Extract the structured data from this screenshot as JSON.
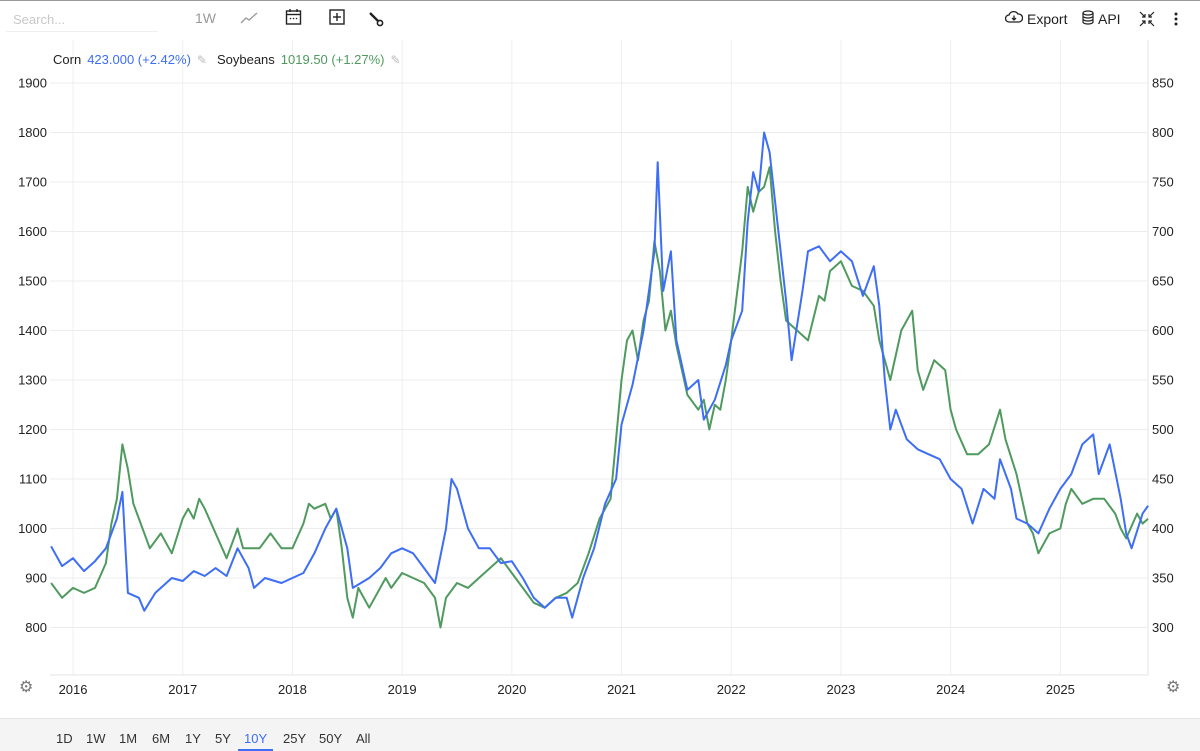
{
  "toolbar": {
    "search_placeholder": "Search...",
    "interval": "1W",
    "export_label": "Export",
    "api_label": "API"
  },
  "legend": {
    "corn": {
      "name": "Corn",
      "value": "423.000 (+2.42%)"
    },
    "soybeans": {
      "name": "Soybeans",
      "value": "1019.50 (+1.27%)"
    }
  },
  "ranges": [
    "1D",
    "1W",
    "1M",
    "6M",
    "1Y",
    "5Y",
    "10Y",
    "25Y",
    "50Y",
    "All"
  ],
  "active_range": "10Y",
  "colors": {
    "corn": "#3d6ef5",
    "soybeans": "#4f9a5e",
    "grid": "#ececec"
  },
  "chart_data": {
    "type": "line",
    "title": "",
    "x_ticks": [
      "2016",
      "2017",
      "2018",
      "2019",
      "2020",
      "2021",
      "2022",
      "2023",
      "2024",
      "2025"
    ],
    "xlim": [
      2015.79,
      2025.8
    ],
    "left_axis": {
      "ticks": [
        "1900",
        "1800",
        "1700",
        "1600",
        "1500",
        "1400",
        "1300",
        "1200",
        "1100",
        "1000",
        "900",
        "800"
      ],
      "range": [
        800,
        1900
      ],
      "series": "Soybeans"
    },
    "right_axis": {
      "ticks": [
        "850",
        "800",
        "750",
        "700",
        "650",
        "600",
        "550",
        "500",
        "450",
        "400",
        "350",
        "300"
      ],
      "range": [
        300,
        850
      ],
      "series": "Corn"
    },
    "grid": true,
    "series": [
      {
        "name": "Corn",
        "axis": "right",
        "points": [
          [
            2015.8,
            382
          ],
          [
            2015.9,
            362
          ],
          [
            2016.0,
            370
          ],
          [
            2016.1,
            357
          ],
          [
            2016.2,
            367
          ],
          [
            2016.3,
            380
          ],
          [
            2016.4,
            410
          ],
          [
            2016.45,
            437
          ],
          [
            2016.5,
            335
          ],
          [
            2016.6,
            330
          ],
          [
            2016.65,
            317
          ],
          [
            2016.75,
            335
          ],
          [
            2016.9,
            350
          ],
          [
            2017.0,
            347
          ],
          [
            2017.1,
            357
          ],
          [
            2017.2,
            352
          ],
          [
            2017.3,
            360
          ],
          [
            2017.4,
            352
          ],
          [
            2017.5,
            380
          ],
          [
            2017.6,
            360
          ],
          [
            2017.65,
            340
          ],
          [
            2017.75,
            350
          ],
          [
            2017.9,
            345
          ],
          [
            2018.0,
            350
          ],
          [
            2018.1,
            355
          ],
          [
            2018.2,
            375
          ],
          [
            2018.3,
            400
          ],
          [
            2018.4,
            420
          ],
          [
            2018.5,
            380
          ],
          [
            2018.55,
            340
          ],
          [
            2018.7,
            350
          ],
          [
            2018.8,
            360
          ],
          [
            2018.9,
            375
          ],
          [
            2019.0,
            380
          ],
          [
            2019.1,
            375
          ],
          [
            2019.2,
            360
          ],
          [
            2019.3,
            345
          ],
          [
            2019.4,
            400
          ],
          [
            2019.45,
            450
          ],
          [
            2019.5,
            440
          ],
          [
            2019.6,
            400
          ],
          [
            2019.7,
            380
          ],
          [
            2019.8,
            380
          ],
          [
            2019.9,
            365
          ],
          [
            2020.0,
            367
          ],
          [
            2020.1,
            350
          ],
          [
            2020.2,
            330
          ],
          [
            2020.3,
            320
          ],
          [
            2020.4,
            330
          ],
          [
            2020.5,
            330
          ],
          [
            2020.55,
            310
          ],
          [
            2020.65,
            350
          ],
          [
            2020.75,
            380
          ],
          [
            2020.85,
            425
          ],
          [
            2020.95,
            450
          ],
          [
            2021.0,
            505
          ],
          [
            2021.1,
            545
          ],
          [
            2021.2,
            600
          ],
          [
            2021.3,
            680
          ],
          [
            2021.33,
            770
          ],
          [
            2021.38,
            640
          ],
          [
            2021.45,
            680
          ],
          [
            2021.5,
            590
          ],
          [
            2021.6,
            540
          ],
          [
            2021.7,
            550
          ],
          [
            2021.75,
            510
          ],
          [
            2021.85,
            530
          ],
          [
            2021.95,
            565
          ],
          [
            2022.0,
            590
          ],
          [
            2022.1,
            620
          ],
          [
            2022.15,
            710
          ],
          [
            2022.2,
            760
          ],
          [
            2022.25,
            740
          ],
          [
            2022.3,
            800
          ],
          [
            2022.35,
            780
          ],
          [
            2022.4,
            730
          ],
          [
            2022.5,
            630
          ],
          [
            2022.55,
            570
          ],
          [
            2022.65,
            640
          ],
          [
            2022.7,
            680
          ],
          [
            2022.8,
            685
          ],
          [
            2022.9,
            670
          ],
          [
            2023.0,
            680
          ],
          [
            2023.1,
            670
          ],
          [
            2023.2,
            635
          ],
          [
            2023.3,
            665
          ],
          [
            2023.35,
            625
          ],
          [
            2023.4,
            550
          ],
          [
            2023.45,
            500
          ],
          [
            2023.5,
            520
          ],
          [
            2023.6,
            490
          ],
          [
            2023.7,
            480
          ],
          [
            2023.8,
            475
          ],
          [
            2023.9,
            470
          ],
          [
            2024.0,
            450
          ],
          [
            2024.1,
            440
          ],
          [
            2024.2,
            405
          ],
          [
            2024.3,
            440
          ],
          [
            2024.4,
            430
          ],
          [
            2024.45,
            470
          ],
          [
            2024.55,
            440
          ],
          [
            2024.6,
            410
          ],
          [
            2024.7,
            405
          ],
          [
            2024.8,
            395
          ],
          [
            2024.9,
            420
          ],
          [
            2025.0,
            440
          ],
          [
            2025.1,
            455
          ],
          [
            2025.2,
            485
          ],
          [
            2025.3,
            495
          ],
          [
            2025.35,
            455
          ],
          [
            2025.45,
            485
          ],
          [
            2025.55,
            430
          ],
          [
            2025.6,
            395
          ],
          [
            2025.65,
            380
          ],
          [
            2025.75,
            415
          ],
          [
            2025.8,
            423
          ]
        ]
      },
      {
        "name": "Soybeans",
        "axis": "left",
        "points": [
          [
            2015.8,
            890
          ],
          [
            2015.9,
            860
          ],
          [
            2016.0,
            880
          ],
          [
            2016.1,
            870
          ],
          [
            2016.2,
            880
          ],
          [
            2016.3,
            930
          ],
          [
            2016.35,
            1010
          ],
          [
            2016.4,
            1060
          ],
          [
            2016.45,
            1170
          ],
          [
            2016.5,
            1120
          ],
          [
            2016.55,
            1050
          ],
          [
            2016.6,
            1020
          ],
          [
            2016.7,
            960
          ],
          [
            2016.8,
            990
          ],
          [
            2016.9,
            950
          ],
          [
            2017.0,
            1020
          ],
          [
            2017.05,
            1040
          ],
          [
            2017.1,
            1020
          ],
          [
            2017.15,
            1060
          ],
          [
            2017.2,
            1040
          ],
          [
            2017.3,
            990
          ],
          [
            2017.4,
            940
          ],
          [
            2017.5,
            1000
          ],
          [
            2017.55,
            960
          ],
          [
            2017.6,
            960
          ],
          [
            2017.7,
            960
          ],
          [
            2017.8,
            990
          ],
          [
            2017.9,
            960
          ],
          [
            2018.0,
            960
          ],
          [
            2018.1,
            1010
          ],
          [
            2018.15,
            1050
          ],
          [
            2018.2,
            1040
          ],
          [
            2018.3,
            1050
          ],
          [
            2018.35,
            1020
          ],
          [
            2018.4,
            1040
          ],
          [
            2018.45,
            960
          ],
          [
            2018.5,
            860
          ],
          [
            2018.55,
            820
          ],
          [
            2018.6,
            880
          ],
          [
            2018.7,
            840
          ],
          [
            2018.75,
            860
          ],
          [
            2018.85,
            900
          ],
          [
            2018.9,
            880
          ],
          [
            2019.0,
            910
          ],
          [
            2019.1,
            900
          ],
          [
            2019.2,
            890
          ],
          [
            2019.3,
            860
          ],
          [
            2019.35,
            800
          ],
          [
            2019.4,
            860
          ],
          [
            2019.5,
            890
          ],
          [
            2019.6,
            880
          ],
          [
            2019.7,
            900
          ],
          [
            2019.8,
            920
          ],
          [
            2019.9,
            940
          ],
          [
            2020.0,
            910
          ],
          [
            2020.1,
            880
          ],
          [
            2020.2,
            850
          ],
          [
            2020.3,
            840
          ],
          [
            2020.4,
            860
          ],
          [
            2020.5,
            870
          ],
          [
            2020.6,
            890
          ],
          [
            2020.7,
            950
          ],
          [
            2020.8,
            1020
          ],
          [
            2020.9,
            1060
          ],
          [
            2021.0,
            1300
          ],
          [
            2021.05,
            1380
          ],
          [
            2021.1,
            1400
          ],
          [
            2021.15,
            1340
          ],
          [
            2021.2,
            1420
          ],
          [
            2021.25,
            1460
          ],
          [
            2021.3,
            1580
          ],
          [
            2021.35,
            1520
          ],
          [
            2021.4,
            1400
          ],
          [
            2021.45,
            1440
          ],
          [
            2021.5,
            1370
          ],
          [
            2021.55,
            1320
          ],
          [
            2021.6,
            1270
          ],
          [
            2021.7,
            1240
          ],
          [
            2021.75,
            1260
          ],
          [
            2021.8,
            1200
          ],
          [
            2021.85,
            1250
          ],
          [
            2021.9,
            1240
          ],
          [
            2021.95,
            1300
          ],
          [
            2022.0,
            1380
          ],
          [
            2022.05,
            1470
          ],
          [
            2022.1,
            1560
          ],
          [
            2022.15,
            1690
          ],
          [
            2022.2,
            1640
          ],
          [
            2022.25,
            1680
          ],
          [
            2022.3,
            1690
          ],
          [
            2022.35,
            1730
          ],
          [
            2022.4,
            1600
          ],
          [
            2022.45,
            1500
          ],
          [
            2022.5,
            1420
          ],
          [
            2022.6,
            1400
          ],
          [
            2022.7,
            1380
          ],
          [
            2022.8,
            1470
          ],
          [
            2022.85,
            1460
          ],
          [
            2022.9,
            1520
          ],
          [
            2023.0,
            1540
          ],
          [
            2023.1,
            1490
          ],
          [
            2023.2,
            1480
          ],
          [
            2023.3,
            1450
          ],
          [
            2023.35,
            1380
          ],
          [
            2023.4,
            1340
          ],
          [
            2023.45,
            1300
          ],
          [
            2023.55,
            1400
          ],
          [
            2023.65,
            1440
          ],
          [
            2023.7,
            1320
          ],
          [
            2023.75,
            1280
          ],
          [
            2023.85,
            1340
          ],
          [
            2023.95,
            1320
          ],
          [
            2024.0,
            1240
          ],
          [
            2024.05,
            1200
          ],
          [
            2024.15,
            1150
          ],
          [
            2024.25,
            1150
          ],
          [
            2024.35,
            1170
          ],
          [
            2024.45,
            1240
          ],
          [
            2024.5,
            1180
          ],
          [
            2024.6,
            1110
          ],
          [
            2024.7,
            1010
          ],
          [
            2024.75,
            990
          ],
          [
            2024.8,
            950
          ],
          [
            2024.9,
            990
          ],
          [
            2025.0,
            1000
          ],
          [
            2025.05,
            1050
          ],
          [
            2025.1,
            1080
          ],
          [
            2025.2,
            1050
          ],
          [
            2025.3,
            1060
          ],
          [
            2025.4,
            1060
          ],
          [
            2025.5,
            1030
          ],
          [
            2025.55,
            1000
          ],
          [
            2025.6,
            980
          ],
          [
            2025.7,
            1030
          ],
          [
            2025.75,
            1010
          ],
          [
            2025.8,
            1019.5
          ]
        ]
      }
    ]
  }
}
